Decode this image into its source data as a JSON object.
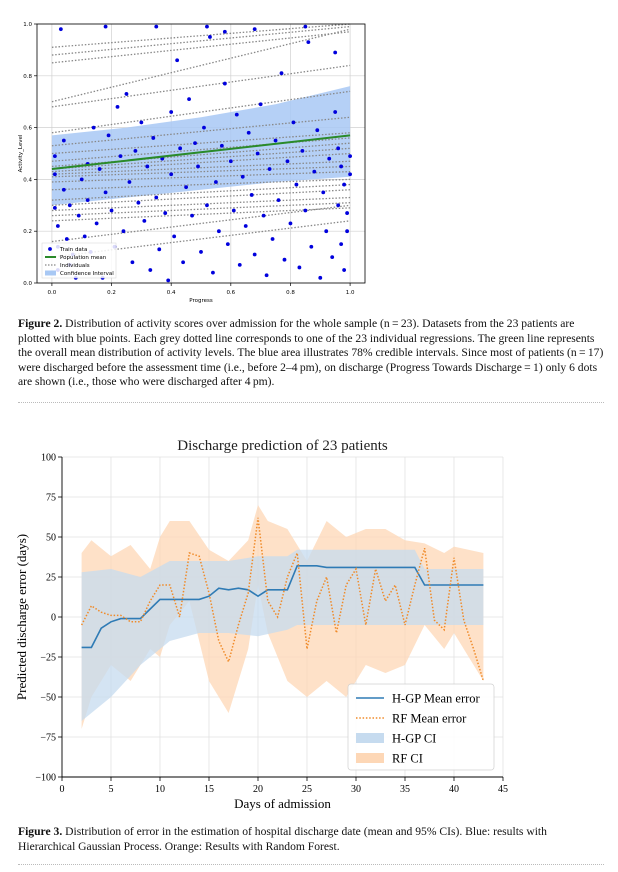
{
  "figure2": {
    "label": "Figure 2.",
    "text": "Distribution of activity scores over admission for the whole sample (n = 23). Datasets from the 23 patients are plotted with blue points. Each grey dotted line corresponds to one of the 23 individual regressions. The green line represents the overall mean distribution of activity levels. The blue area illustrates 78% credible intervals. Since most of patients (n = 17) were discharged before the assessment time (i.e., before 2–4 pm), on discharge (Progress Towards Discharge = 1) only 6 dots are shown (i.e., those who were discharged after 4 pm)."
  },
  "figure3": {
    "label": "Figure 3.",
    "text": "Distribution of error in the estimation of hospital discharge date (mean and 95% CIs). Blue: results with Hierarchical Gaussian Process. Orange: Results with Random Forest."
  },
  "colors": {
    "train_points": "#0000dd",
    "population_mean": "#2a8a2a",
    "individuals": "#888888",
    "confidence": "#a8c8f4",
    "hgp": "#2f7bb5",
    "hgp_ci": "#c6dbef",
    "rf": "#f08a28",
    "rf_ci": "#fdd7b6"
  },
  "chart_data": [
    {
      "type": "scatter",
      "title": "",
      "xlabel": "Progress",
      "ylabel": "Activity_Level",
      "xlim": [
        -0.05,
        1.05
      ],
      "ylim": [
        0.0,
        1.0
      ],
      "xticks": [
        "0.0",
        "0.2",
        "0.4",
        "0.6",
        "0.8",
        "1.0"
      ],
      "yticks": [
        "0.0",
        "0.2",
        "0.4",
        "0.6",
        "0.8",
        "1.0"
      ],
      "grid": true,
      "legend_position": "bottom-left",
      "legend": [
        "Train data",
        "Population mean",
        "Individuals",
        "Confidence Interval"
      ],
      "population_mean": {
        "x": [
          0.0,
          1.0
        ],
        "y": [
          0.44,
          0.57
        ]
      },
      "confidence_interval": {
        "x": [
          0.0,
          0.25,
          0.5,
          0.75,
          1.0
        ],
        "lower": [
          0.3,
          0.33,
          0.36,
          0.39,
          0.41
        ],
        "upper": [
          0.57,
          0.6,
          0.64,
          0.69,
          0.76
        ]
      },
      "individuals": [
        {
          "y0": 0.91,
          "y1": 1.0
        },
        {
          "y0": 0.88,
          "y1": 0.99
        },
        {
          "y0": 0.85,
          "y1": 0.97
        },
        {
          "y0": 0.7,
          "y1": 0.98
        },
        {
          "y0": 0.68,
          "y1": 0.84
        },
        {
          "y0": 0.58,
          "y1": 0.74
        },
        {
          "y0": 0.53,
          "y1": 0.64
        },
        {
          "y0": 0.5,
          "y1": 0.58
        },
        {
          "y0": 0.47,
          "y1": 0.56
        },
        {
          "y0": 0.45,
          "y1": 0.54
        },
        {
          "y0": 0.44,
          "y1": 0.52
        },
        {
          "y0": 0.43,
          "y1": 0.5
        },
        {
          "y0": 0.42,
          "y1": 0.47
        },
        {
          "y0": 0.41,
          "y1": 0.45
        },
        {
          "y0": 0.39,
          "y1": 0.43
        },
        {
          "y0": 0.36,
          "y1": 0.4
        },
        {
          "y0": 0.32,
          "y1": 0.38
        },
        {
          "y0": 0.3,
          "y1": 0.36
        },
        {
          "y0": 0.28,
          "y1": 0.33
        },
        {
          "y0": 0.26,
          "y1": 0.31
        },
        {
          "y0": 0.24,
          "y1": 0.29
        },
        {
          "y0": 0.16,
          "y1": 0.3
        },
        {
          "y0": 0.1,
          "y1": 0.24
        }
      ],
      "train_data": [
        [
          0.01,
          0.49
        ],
        [
          0.01,
          0.42
        ],
        [
          0.01,
          0.29
        ],
        [
          0.02,
          0.14
        ],
        [
          0.02,
          0.05
        ],
        [
          0.02,
          0.22
        ],
        [
          0.04,
          0.55
        ],
        [
          0.04,
          0.36
        ],
        [
          0.05,
          0.17
        ],
        [
          0.06,
          0.3
        ],
        [
          0.06,
          0.07
        ],
        [
          0.07,
          0.11
        ],
        [
          0.08,
          0.02
        ],
        [
          0.09,
          0.26
        ],
        [
          0.1,
          0.4
        ],
        [
          0.11,
          0.18
        ],
        [
          0.12,
          0.46
        ],
        [
          0.12,
          0.32
        ],
        [
          0.13,
          0.12
        ],
        [
          0.14,
          0.6
        ],
        [
          0.15,
          0.23
        ],
        [
          0.16,
          0.44
        ],
        [
          0.17,
          0.02
        ],
        [
          0.18,
          0.35
        ],
        [
          0.19,
          0.57
        ],
        [
          0.2,
          0.28
        ],
        [
          0.21,
          0.14
        ],
        [
          0.22,
          0.68
        ],
        [
          0.23,
          0.49
        ],
        [
          0.24,
          0.2
        ],
        [
          0.25,
          0.73
        ],
        [
          0.26,
          0.39
        ],
        [
          0.27,
          0.08
        ],
        [
          0.28,
          0.51
        ],
        [
          0.29,
          0.31
        ],
        [
          0.3,
          0.62
        ],
        [
          0.31,
          0.24
        ],
        [
          0.32,
          0.45
        ],
        [
          0.33,
          0.05
        ],
        [
          0.34,
          0.56
        ],
        [
          0.35,
          0.33
        ],
        [
          0.36,
          0.13
        ],
        [
          0.37,
          0.48
        ],
        [
          0.38,
          0.27
        ],
        [
          0.39,
          0.01
        ],
        [
          0.4,
          0.66
        ],
        [
          0.4,
          0.42
        ],
        [
          0.41,
          0.18
        ],
        [
          0.42,
          0.86
        ],
        [
          0.43,
          0.52
        ],
        [
          0.44,
          0.08
        ],
        [
          0.45,
          0.37
        ],
        [
          0.46,
          0.71
        ],
        [
          0.47,
          0.26
        ],
        [
          0.48,
          0.54
        ],
        [
          0.49,
          0.45
        ],
        [
          0.5,
          0.12
        ],
        [
          0.51,
          0.6
        ],
        [
          0.52,
          0.3
        ],
        [
          0.53,
          0.95
        ],
        [
          0.54,
          0.04
        ],
        [
          0.55,
          0.39
        ],
        [
          0.56,
          0.2
        ],
        [
          0.57,
          0.53
        ],
        [
          0.58,
          0.77
        ],
        [
          0.59,
          0.15
        ],
        [
          0.6,
          0.47
        ],
        [
          0.61,
          0.28
        ],
        [
          0.62,
          0.65
        ],
        [
          0.63,
          0.07
        ],
        [
          0.64,
          0.41
        ],
        [
          0.65,
          0.22
        ],
        [
          0.66,
          0.58
        ],
        [
          0.67,
          0.34
        ],
        [
          0.68,
          0.11
        ],
        [
          0.69,
          0.5
        ],
        [
          0.7,
          0.69
        ],
        [
          0.71,
          0.26
        ],
        [
          0.72,
          0.03
        ],
        [
          0.73,
          0.44
        ],
        [
          0.74,
          0.17
        ],
        [
          0.75,
          0.55
        ],
        [
          0.76,
          0.32
        ],
        [
          0.77,
          0.81
        ],
        [
          0.78,
          0.09
        ],
        [
          0.79,
          0.47
        ],
        [
          0.8,
          0.23
        ],
        [
          0.81,
          0.62
        ],
        [
          0.82,
          0.38
        ],
        [
          0.83,
          0.06
        ],
        [
          0.84,
          0.51
        ],
        [
          0.85,
          0.28
        ],
        [
          0.86,
          0.93
        ],
        [
          0.87,
          0.14
        ],
        [
          0.88,
          0.43
        ],
        [
          0.89,
          0.59
        ],
        [
          0.9,
          0.02
        ],
        [
          0.91,
          0.35
        ],
        [
          0.92,
          0.2
        ],
        [
          0.93,
          0.48
        ],
        [
          0.94,
          0.1
        ],
        [
          0.95,
          0.66
        ],
        [
          0.96,
          0.3
        ],
        [
          0.97,
          0.45
        ],
        [
          0.98,
          0.05
        ],
        [
          0.99,
          0.27
        ],
        [
          1.0,
          0.49
        ],
        [
          1.0,
          0.42
        ],
        [
          0.99,
          0.2
        ],
        [
          0.98,
          0.38
        ],
        [
          0.97,
          0.15
        ],
        [
          0.96,
          0.52
        ],
        [
          0.03,
          0.98
        ],
        [
          0.18,
          0.99
        ],
        [
          0.35,
          0.99
        ],
        [
          0.52,
          0.99
        ],
        [
          0.68,
          0.98
        ],
        [
          0.85,
          0.99
        ],
        [
          0.95,
          0.89
        ],
        [
          0.58,
          0.97
        ]
      ]
    },
    {
      "type": "line",
      "title": "Discharge prediction of 23 patients",
      "xlabel": "Days of admission",
      "ylabel": "Predicted discharge error (days)",
      "xlim": [
        0,
        45
      ],
      "ylim": [
        -100,
        100
      ],
      "xticks": [
        "0",
        "5",
        "10",
        "15",
        "20",
        "25",
        "30",
        "35",
        "40",
        "45"
      ],
      "yticks": [
        "−100",
        "−75",
        "−50",
        "−25",
        "0",
        "25",
        "50",
        "75",
        "100"
      ],
      "grid": true,
      "legend_position": "bottom-right",
      "series": [
        {
          "name": "H-GP Mean error",
          "style": "solid",
          "x": [
            2,
            3,
            4,
            5,
            6,
            7,
            8,
            9,
            10,
            11,
            12,
            13,
            14,
            15,
            16,
            17,
            18,
            19,
            20,
            21,
            22,
            23,
            24,
            25,
            26,
            27,
            28,
            29,
            30,
            31,
            32,
            33,
            34,
            35,
            36,
            37,
            38,
            39,
            40,
            41,
            42,
            43
          ],
          "y": [
            -19,
            -19,
            -7,
            -3,
            -1,
            -1,
            -1,
            5,
            11,
            11,
            11,
            11,
            11,
            13,
            18,
            17,
            18,
            17,
            13,
            17,
            17,
            17,
            32,
            32,
            32,
            31,
            31,
            31,
            31,
            31,
            31,
            31,
            31,
            31,
            31,
            20,
            20,
            20,
            20,
            20,
            20,
            20
          ]
        },
        {
          "name": "RF Mean error",
          "style": "dotted",
          "x": [
            2,
            3,
            4,
            5,
            6,
            7,
            8,
            9,
            10,
            11,
            12,
            13,
            14,
            15,
            16,
            17,
            18,
            19,
            20,
            21,
            22,
            23,
            24,
            25,
            26,
            27,
            28,
            29,
            30,
            31,
            32,
            33,
            34,
            35,
            36,
            37,
            38,
            39,
            40,
            41,
            42,
            43
          ],
          "y": [
            -5,
            7,
            3,
            1,
            1,
            -3,
            -3,
            10,
            20,
            20,
            0,
            40,
            38,
            15,
            -15,
            -28,
            -5,
            15,
            62,
            10,
            0,
            25,
            40,
            -20,
            10,
            25,
            -10,
            20,
            30,
            -5,
            30,
            10,
            20,
            -5,
            20,
            43,
            -2,
            -8,
            37,
            -2,
            -20,
            -40
          ]
        }
      ],
      "ci": [
        {
          "name": "H-GP CI",
          "x": [
            2,
            5,
            8,
            11,
            14,
            17,
            20,
            23,
            24,
            30,
            36,
            37,
            43
          ],
          "lower": [
            -65,
            -50,
            -30,
            -15,
            -10,
            -10,
            -12,
            -8,
            -5,
            -5,
            -5,
            -5,
            -5
          ],
          "upper": [
            28,
            30,
            25,
            35,
            35,
            35,
            38,
            38,
            42,
            42,
            42,
            30,
            30
          ]
        },
        {
          "name": "RF CI",
          "x": [
            2,
            3,
            5,
            7,
            9,
            10,
            11,
            13,
            15,
            17,
            19,
            20,
            21,
            23,
            25,
            27,
            29,
            31,
            33,
            35,
            37,
            39,
            40,
            43
          ],
          "lower": [
            -70,
            -50,
            -30,
            -40,
            -20,
            -25,
            -5,
            10,
            -40,
            -60,
            -20,
            20,
            -10,
            -40,
            -50,
            -40,
            -50,
            -30,
            -35,
            -30,
            -5,
            -20,
            -10,
            -40
          ],
          "upper": [
            40,
            48,
            38,
            45,
            30,
            50,
            60,
            60,
            42,
            35,
            48,
            70,
            60,
            55,
            35,
            60,
            50,
            55,
            55,
            48,
            46,
            40,
            44,
            40
          ]
        }
      ]
    }
  ]
}
